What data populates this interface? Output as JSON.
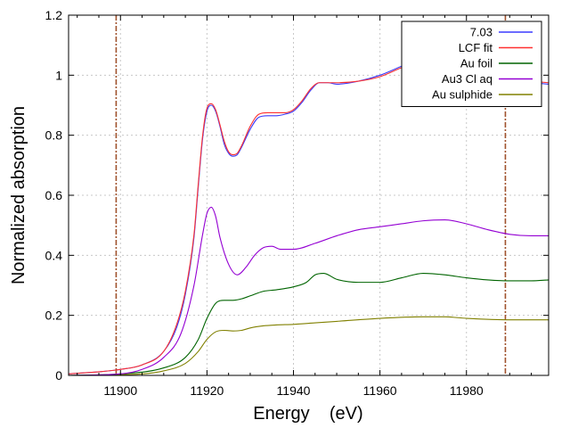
{
  "chart_data": {
    "type": "line",
    "title": "",
    "xlabel": "Energy    (eV)",
    "ylabel": "Normalized absorption",
    "xlim": [
      11888,
      11999
    ],
    "ylim": [
      0,
      1.2
    ],
    "x_ticks": [
      11900,
      11920,
      11940,
      11960,
      11980
    ],
    "y_ticks": [
      0,
      0.2,
      0.4,
      0.6,
      0.8,
      1,
      1.2
    ],
    "x_tick_labels": [
      "11900",
      "11920",
      "11940",
      "11960",
      "11980"
    ],
    "y_tick_labels": [
      "0",
      "0.2",
      "0.4",
      "0.6",
      "0.8",
      "1",
      "1.2"
    ],
    "grid": true,
    "legend_position": "top-right",
    "vertical_markers": [
      11899,
      11989
    ],
    "vertical_marker_color": "#a0522d",
    "series": [
      {
        "name": "7.03",
        "color": "#3b3bff",
        "x": [
          11888,
          11895,
          11900,
          11905,
          11910,
          11913,
          11915,
          11917,
          11918,
          11919,
          11920,
          11921,
          11922,
          11923,
          11924,
          11925,
          11926,
          11927,
          11928,
          11930,
          11932,
          11934,
          11936,
          11938,
          11940,
          11942,
          11944,
          11946,
          11948,
          11950,
          11955,
          11960,
          11965,
          11970,
          11975,
          11980,
          11985,
          11990,
          11995,
          11999
        ],
        "y": [
          0.005,
          0.012,
          0.02,
          0.035,
          0.08,
          0.16,
          0.27,
          0.46,
          0.63,
          0.79,
          0.88,
          0.9,
          0.88,
          0.83,
          0.77,
          0.74,
          0.73,
          0.735,
          0.76,
          0.82,
          0.86,
          0.865,
          0.865,
          0.87,
          0.88,
          0.91,
          0.95,
          0.975,
          0.975,
          0.97,
          0.98,
          1.0,
          1.03,
          1.06,
          1.05,
          1.02,
          0.995,
          0.98,
          0.975,
          0.97
        ]
      },
      {
        "name": "LCF fit",
        "color": "#ff3030",
        "x": [
          11888,
          11895,
          11900,
          11905,
          11910,
          11913,
          11915,
          11917,
          11918,
          11919,
          11920,
          11921,
          11922,
          11923,
          11924,
          11925,
          11926,
          11927,
          11928,
          11930,
          11932,
          11934,
          11936,
          11938,
          11940,
          11942,
          11944,
          11946,
          11948,
          11950,
          11955,
          11960,
          11965,
          11970,
          11975,
          11980,
          11985,
          11990,
          11995,
          11999
        ],
        "y": [
          0.005,
          0.012,
          0.02,
          0.035,
          0.08,
          0.17,
          0.28,
          0.47,
          0.64,
          0.8,
          0.89,
          0.905,
          0.885,
          0.835,
          0.78,
          0.745,
          0.735,
          0.74,
          0.765,
          0.83,
          0.87,
          0.875,
          0.875,
          0.875,
          0.885,
          0.915,
          0.955,
          0.975,
          0.975,
          0.975,
          0.98,
          0.995,
          1.025,
          1.05,
          1.045,
          1.02,
          1.0,
          0.985,
          0.98,
          0.975
        ]
      },
      {
        "name": "Au foil",
        "color": "#006400",
        "x": [
          11888,
          11900,
          11910,
          11915,
          11918,
          11920,
          11922,
          11924,
          11926,
          11928,
          11930,
          11933,
          11936,
          11940,
          11943,
          11945,
          11947,
          11950,
          11955,
          11960,
          11965,
          11970,
          11975,
          11980,
          11985,
          11990,
          11995,
          11999
        ],
        "y": [
          0.0,
          0.005,
          0.025,
          0.06,
          0.12,
          0.19,
          0.24,
          0.25,
          0.25,
          0.255,
          0.265,
          0.28,
          0.285,
          0.295,
          0.31,
          0.335,
          0.34,
          0.32,
          0.31,
          0.31,
          0.325,
          0.34,
          0.335,
          0.325,
          0.318,
          0.315,
          0.315,
          0.318
        ]
      },
      {
        "name": "Au3 Cl aq",
        "color": "#9400d3",
        "x": [
          11888,
          11900,
          11905,
          11910,
          11914,
          11917,
          11919,
          11920,
          11921,
          11922,
          11923,
          11925,
          11927,
          11929,
          11931,
          11933,
          11935,
          11937,
          11940,
          11945,
          11950,
          11955,
          11960,
          11965,
          11970,
          11975,
          11980,
          11985,
          11990,
          11995,
          11999
        ],
        "y": [
          0.0,
          0.005,
          0.02,
          0.06,
          0.14,
          0.3,
          0.47,
          0.54,
          0.56,
          0.53,
          0.46,
          0.37,
          0.335,
          0.36,
          0.4,
          0.425,
          0.43,
          0.42,
          0.42,
          0.44,
          0.465,
          0.485,
          0.495,
          0.505,
          0.515,
          0.518,
          0.505,
          0.485,
          0.47,
          0.465,
          0.465
        ]
      },
      {
        "name": "Au sulphide",
        "color": "#808000",
        "x": [
          11888,
          11905,
          11910,
          11915,
          11918,
          11920,
          11922,
          11924,
          11926,
          11928,
          11930,
          11933,
          11936,
          11940,
          11945,
          11950,
          11960,
          11970,
          11975,
          11980,
          11990,
          11999
        ],
        "y": [
          0.0,
          0.005,
          0.015,
          0.04,
          0.08,
          0.12,
          0.145,
          0.15,
          0.148,
          0.15,
          0.158,
          0.165,
          0.168,
          0.17,
          0.175,
          0.18,
          0.19,
          0.195,
          0.195,
          0.19,
          0.185,
          0.185
        ]
      }
    ]
  }
}
